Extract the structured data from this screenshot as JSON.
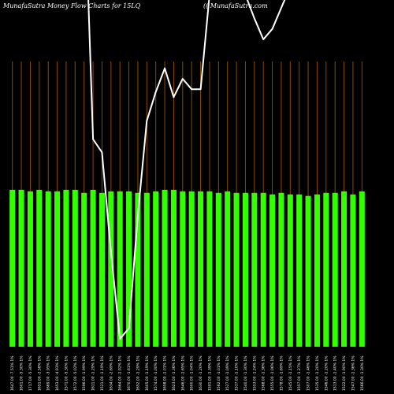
{
  "header": {
    "title": "MunafaSutra  Money Flow  Charts for 15LQ",
    "watermark": "(( MunafaSutra.com"
  },
  "chart_data": {
    "type": "bar",
    "title": "MunafaSutra  Money Flow  Charts for 15LQ",
    "colors": {
      "bars": "#33ff00",
      "line": "#ffffff",
      "grid": "#8a4b00",
      "background": "#000000"
    },
    "grid": "vertical",
    "categories": [
      "1647.00 -7.51% 1%",
      "1601.00 -5.30% 1%",
      "1717.00 -5.30% 1%",
      "1651.00 -2.58% 1%",
      "1669.00 -3.95% 1%",
      "1653.00 -4.93% 1%",
      "1571.00 -5.30% 1%",
      "1572.00 -5.02% 1%",
      "1596.00 -1.99% 1%",
      "1611.00 -1.29% 1%",
      "1521.00 -1.19% 1%",
      "1634.00 -2.69% 1%",
      "1664.00 -1.92% 1%",
      "1670.00 -1.61% 1%",
      "1652.00 -1.29% 1%",
      "1605.00 -1.19% 1%",
      "1574.00 -1.00% 1%",
      "1658.00 -1.01% 1%",
      "1623.00 -1.36% 1%",
      "1646.00 -1.65% 1%",
      "1600.00 -1.04% 1%",
      "1630.00 -1.20% 1%",
      "1591.00 -1.39% 1%",
      "1562.00 -1.01% 1%",
      "1527.00 -1.09% 1%",
      "1537.00 -1.10% 1%",
      "1540.00 -1.30% 1%",
      "1553.00 -1.24% 1%",
      "1568.00 -1.36% 1%",
      "1555.00 -1.06% 1%",
      "1578.00 -1.69% 1%",
      "1545.00 -1.15% 1%",
      "1557.00 -1.27% 1%",
      "1507.00 -1.46% 1%",
      "1535.00 -1.20% 1%",
      "1546.00 -1.20% 1%",
      "1513.00 -1.40% 1%",
      "1522.00 -1.90% 1%",
      "1547.00 -1.36% 1%",
      "1566.00 -1.30% 1%"
    ],
    "values": [
      102,
      102,
      101,
      102,
      101,
      101,
      102,
      102,
      100,
      102,
      100,
      101,
      101,
      101,
      100,
      100,
      101,
      102,
      102,
      101,
      101,
      101,
      101,
      100,
      101,
      100,
      100,
      100,
      100,
      99,
      100,
      99,
      99,
      98,
      99,
      100,
      100,
      101,
      99,
      101
    ],
    "line": [
      1664,
      1713,
      1660,
      1618,
      1599,
      1621,
      1597,
      1579,
      1603,
      1502,
      1497,
      1459,
      1426,
      1430,
      1473,
      1509,
      1520,
      1529,
      1518,
      1525,
      1521,
      1521,
      1557,
      1568,
      1566,
      1565,
      1557,
      1548,
      1540,
      1544,
      1552,
      1560,
      1563,
      1566,
      1569,
      1582,
      1647,
      1612,
      1592,
      1571
    ],
    "ylim_bars": [
      0,
      210
    ],
    "ylim_line": [
      1420,
      1555
    ]
  }
}
